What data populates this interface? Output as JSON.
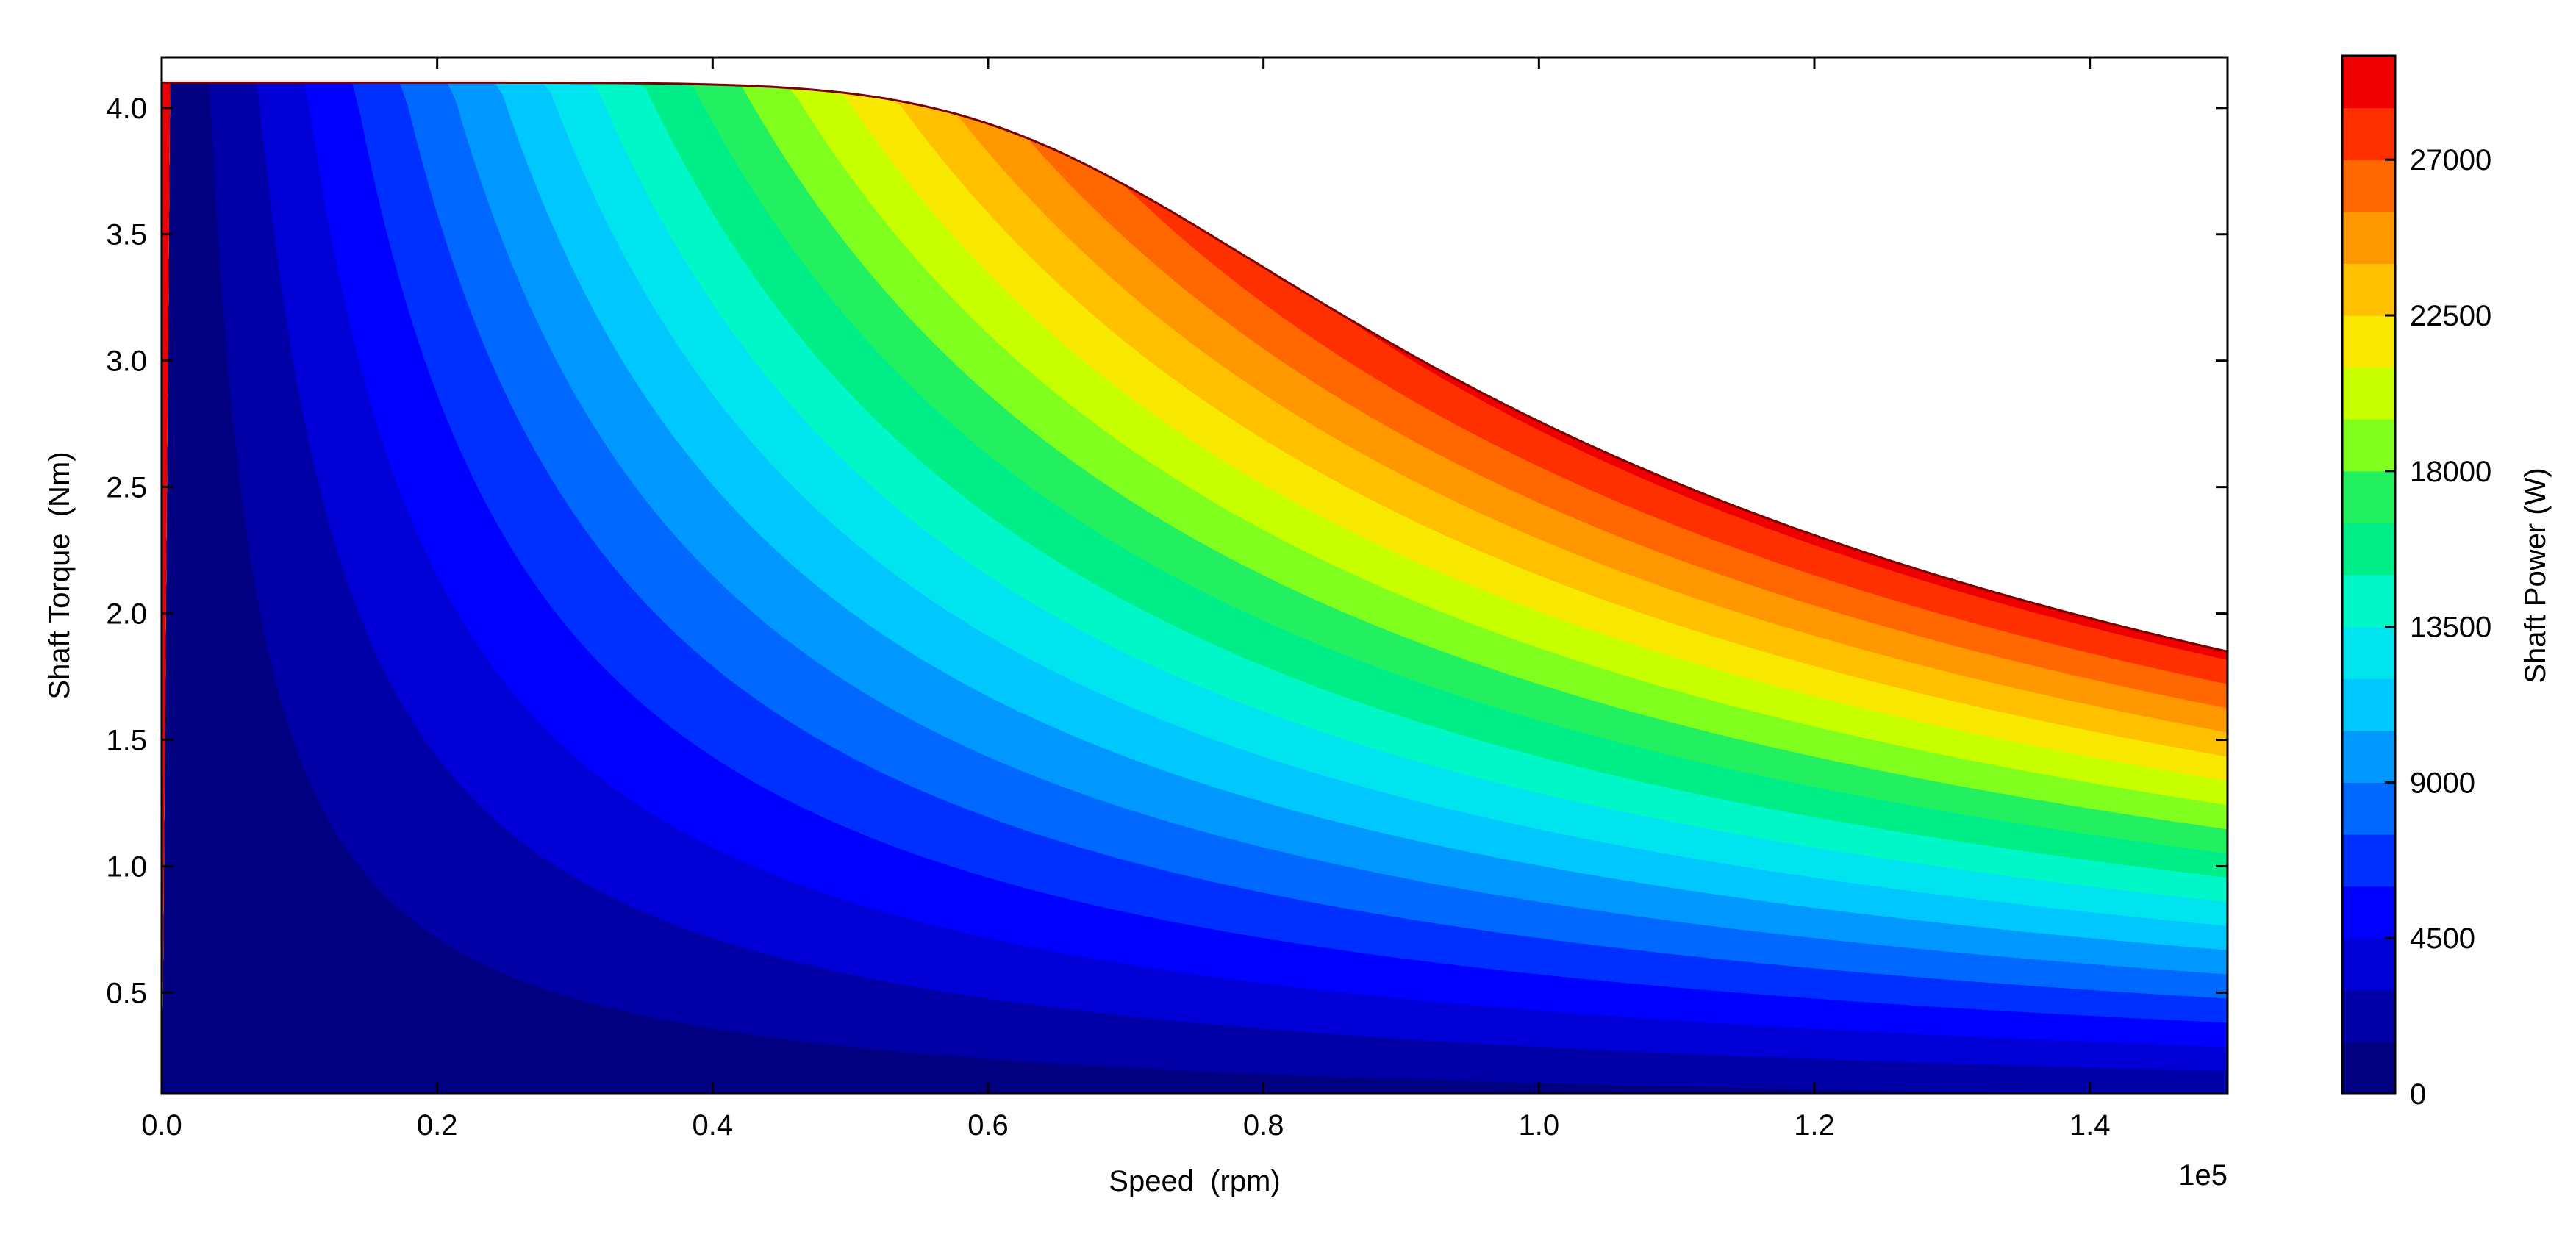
{
  "chart_data": {
    "type": "heatmap",
    "subtype": "filled-contour",
    "title": "",
    "xlabel": "Speed  (rpm)",
    "ylabel": "Shaft Torque  (Nm)",
    "x_offset_label": "1e5",
    "xlim": [
      0,
      150000
    ],
    "ylim": [
      0.1,
      4.2
    ],
    "xticks": [
      0,
      20000,
      40000,
      60000,
      80000,
      100000,
      120000,
      140000
    ],
    "xtick_labels": [
      "0.0",
      "0.2",
      "0.4",
      "0.6",
      "0.8",
      "1.0",
      "1.2",
      "1.4"
    ],
    "yticks": [
      0.5,
      1.0,
      1.5,
      2.0,
      2.5,
      3.0,
      3.5,
      4.0
    ],
    "ytick_labels": [
      "0.5",
      "1.0",
      "1.5",
      "2.0",
      "2.5",
      "3.0",
      "3.5",
      "4.0"
    ],
    "envelope": {
      "max_torque_nm": 4.1,
      "corner_speed_rpm": 65000,
      "max_speed_rpm": 150000,
      "torque_at_max_speed_nm": 1.85,
      "max_power_w": 29000
    },
    "contour_levels": [
      0,
      1500,
      3000,
      4500,
      6000,
      7500,
      9000,
      10500,
      12000,
      13500,
      15000,
      16500,
      18000,
      19500,
      21000,
      22500,
      24000,
      25500,
      27000,
      28500,
      30000
    ],
    "contour_colors": [
      "#000080",
      "#0000a6",
      "#0000d6",
      "#0000ff",
      "#0030ff",
      "#0068ff",
      "#0098ff",
      "#00c8ff",
      "#00e4f0",
      "#00f8c8",
      "#00ee88",
      "#22f060",
      "#80ff1e",
      "#c8ff00",
      "#f8e800",
      "#ffc000",
      "#ff9800",
      "#ff6800",
      "#ff3000",
      "#ee0000",
      "#aa0000"
    ],
    "colorbar": {
      "label": "Shaft Power (W)",
      "range": [
        0,
        30000
      ],
      "ticks": [
        0,
        4500,
        9000,
        13500,
        18000,
        22500,
        27000
      ],
      "tick_labels": [
        "0",
        "4500",
        "9000",
        "13500",
        "18000",
        "22500",
        "27000"
      ]
    },
    "grid": false,
    "legend": "colorbar-right"
  }
}
